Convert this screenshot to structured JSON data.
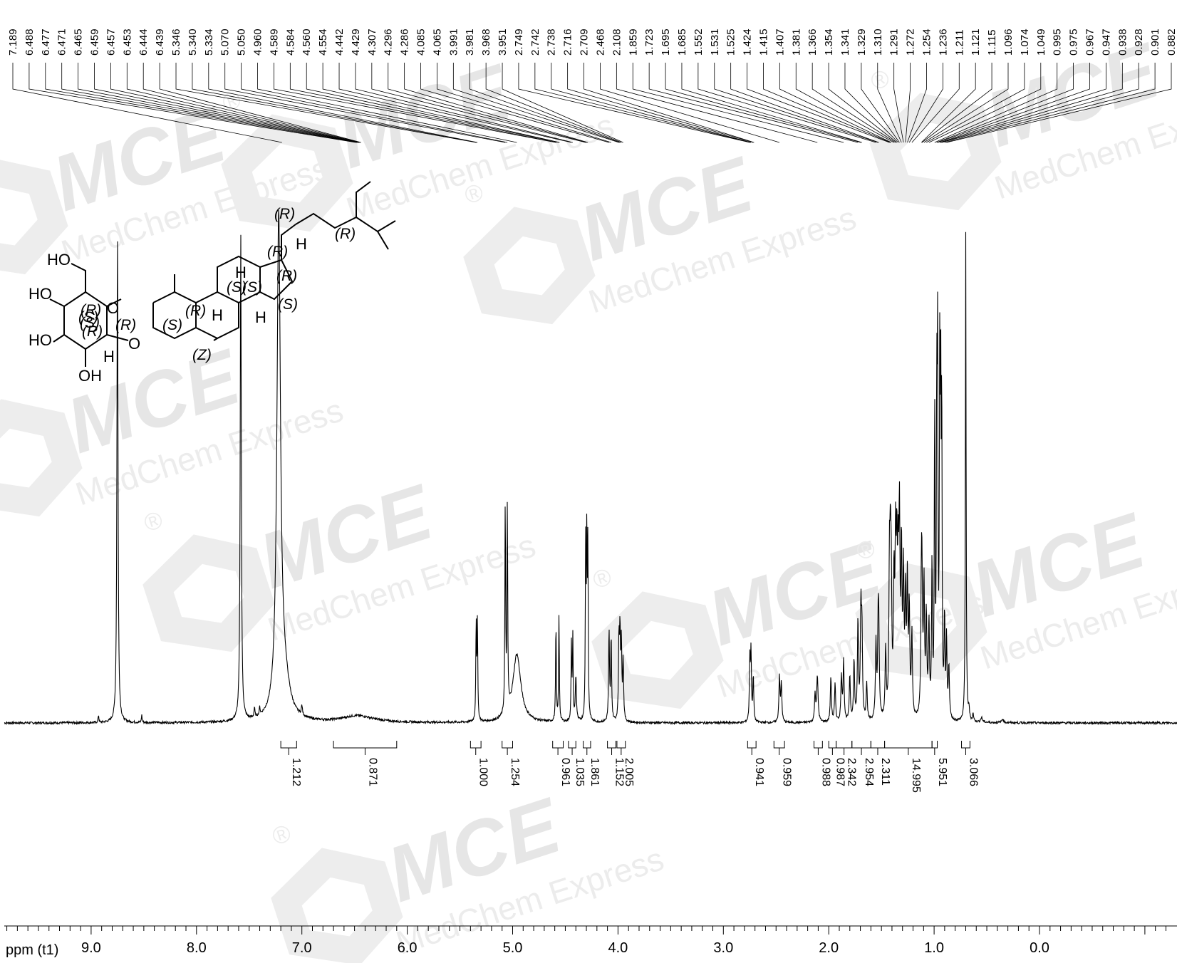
{
  "watermark": {
    "brand": "MCE",
    "sub": "MedChem Express",
    "mark": "®",
    "color": "#e6e6e6"
  },
  "molecule": {
    "atoms": [
      "HO",
      "HO",
      "HO",
      "OH",
      "O",
      "O",
      "H",
      "H",
      "H",
      "H",
      "H"
    ],
    "stereo": [
      "(R)",
      "(R)",
      "(R)",
      "(R)",
      "(S)",
      "(S)",
      "(S)",
      "(R)",
      "(S)",
      "(R)",
      "(S)",
      "(R)",
      "(S)",
      "(Z)",
      "(R)"
    ]
  },
  "chart_data": {
    "type": "line",
    "title": "",
    "xlabel": "ppm (t1)",
    "ylabel": "",
    "xlim": [
      10.0,
      -1.0
    ],
    "x_reversed": true,
    "x_ticks": [
      "9.0",
      "8.0",
      "7.0",
      "6.0",
      "5.0",
      "4.0",
      "3.0",
      "2.0",
      "1.0",
      "0.0"
    ],
    "x_tick_values": [
      9.0,
      8.0,
      7.0,
      6.0,
      5.0,
      4.0,
      3.0,
      2.0,
      1.0,
      0.0
    ],
    "grid": false,
    "line_color": "#000000",
    "peak_list": [
      "7.189",
      "6.488",
      "6.477",
      "6.471",
      "6.465",
      "6.459",
      "6.457",
      "6.453",
      "6.444",
      "6.439",
      "5.346",
      "5.340",
      "5.334",
      "5.070",
      "5.050",
      "4.960",
      "4.589",
      "4.584",
      "4.560",
      "4.554",
      "4.442",
      "4.429",
      "4.307",
      "4.296",
      "4.286",
      "4.085",
      "4.065",
      "3.991",
      "3.981",
      "3.968",
      "3.951",
      "2.749",
      "2.742",
      "2.738",
      "2.716",
      "2.709",
      "2.468",
      "2.108",
      "1.859",
      "1.723",
      "1.695",
      "1.685",
      "1.552",
      "1.531",
      "1.525",
      "1.424",
      "1.415",
      "1.407",
      "1.381",
      "1.366",
      "1.354",
      "1.341",
      "1.329",
      "1.310",
      "1.291",
      "1.272",
      "1.254",
      "1.236",
      "1.211",
      "1.121",
      "1.115",
      "1.096",
      "1.074",
      "1.049",
      "0.995",
      "0.975",
      "0.967",
      "0.947",
      "0.938",
      "0.928",
      "0.901",
      "0.882"
    ],
    "integrals": [
      {
        "label": "1.212",
        "from": 7.2,
        "to": 7.05
      },
      {
        "label": "0.871",
        "from": 6.7,
        "to": 6.1
      },
      {
        "label": "1.000",
        "from": 5.4,
        "to": 5.3
      },
      {
        "label": "1.254",
        "from": 5.1,
        "to": 5.0
      },
      {
        "label": "0.961",
        "from": 4.62,
        "to": 4.52
      },
      {
        "label": "1.035",
        "from": 4.47,
        "to": 4.4
      },
      {
        "label": "1.861",
        "from": 4.33,
        "to": 4.26
      },
      {
        "label": "1.152",
        "from": 4.1,
        "to": 4.02
      },
      {
        "label": "2.005",
        "from": 4.01,
        "to": 3.93
      },
      {
        "label": "0.941",
        "from": 2.77,
        "to": 2.69
      },
      {
        "label": "0.959",
        "from": 2.52,
        "to": 2.42
      },
      {
        "label": "0.988",
        "from": 2.14,
        "to": 2.06
      },
      {
        "label": "0.987",
        "from": 2.0,
        "to": 1.93
      },
      {
        "label": "2.342",
        "from": 1.93,
        "to": 1.78
      },
      {
        "label": "2.954",
        "from": 1.78,
        "to": 1.6
      },
      {
        "label": "2.311",
        "from": 1.6,
        "to": 1.47
      },
      {
        "label": "14.995",
        "from": 1.47,
        "to": 1.02
      },
      {
        "label": "5.951",
        "from": 1.02,
        "to": 0.97
      },
      {
        "label": "3.066",
        "from": 0.74,
        "to": 0.66
      }
    ],
    "peaks": [
      {
        "x": 8.93,
        "h": 0.02,
        "w": 0.004
      },
      {
        "x": 8.75,
        "h": 1.3,
        "w": 0.006
      },
      {
        "x": 8.52,
        "h": 0.02,
        "w": 0.004
      },
      {
        "x": 7.58,
        "h": 1.3,
        "w": 0.006
      },
      {
        "x": 7.45,
        "h": 0.025,
        "w": 0.005
      },
      {
        "x": 7.4,
        "h": 0.02,
        "w": 0.005
      },
      {
        "x": 7.22,
        "h": 1.3,
        "w": 0.02
      },
      {
        "x": 7.17,
        "h": 0.1,
        "w": 0.06
      },
      {
        "x": 7.0,
        "h": 0.025,
        "w": 0.006
      },
      {
        "x": 6.47,
        "h": 0.018,
        "w": 0.18
      },
      {
        "x": 5.346,
        "h": 0.26,
        "w": 0.004
      },
      {
        "x": 5.334,
        "h": 0.26,
        "w": 0.004
      },
      {
        "x": 5.07,
        "h": 0.56,
        "w": 0.004
      },
      {
        "x": 5.05,
        "h": 0.54,
        "w": 0.004
      },
      {
        "x": 4.96,
        "h": 0.18,
        "w": 0.045
      },
      {
        "x": 4.589,
        "h": 0.26,
        "w": 0.004
      },
      {
        "x": 4.56,
        "h": 0.28,
        "w": 0.004
      },
      {
        "x": 4.442,
        "h": 0.2,
        "w": 0.004
      },
      {
        "x": 4.429,
        "h": 0.22,
        "w": 0.004
      },
      {
        "x": 4.4,
        "h": 0.12,
        "w": 0.006
      },
      {
        "x": 4.307,
        "h": 0.45,
        "w": 0.004
      },
      {
        "x": 4.296,
        "h": 0.46,
        "w": 0.004
      },
      {
        "x": 4.286,
        "h": 0.44,
        "w": 0.004
      },
      {
        "x": 4.085,
        "h": 0.24,
        "w": 0.005
      },
      {
        "x": 4.065,
        "h": 0.22,
        "w": 0.005
      },
      {
        "x": 3.991,
        "h": 0.21,
        "w": 0.005
      },
      {
        "x": 3.981,
        "h": 0.22,
        "w": 0.005
      },
      {
        "x": 3.968,
        "h": 0.2,
        "w": 0.005
      },
      {
        "x": 3.951,
        "h": 0.16,
        "w": 0.005
      },
      {
        "x": 2.749,
        "h": 0.16,
        "w": 0.005
      },
      {
        "x": 2.738,
        "h": 0.18,
        "w": 0.005
      },
      {
        "x": 2.716,
        "h": 0.12,
        "w": 0.005
      },
      {
        "x": 2.468,
        "h": 0.12,
        "w": 0.006
      },
      {
        "x": 2.45,
        "h": 0.1,
        "w": 0.006
      },
      {
        "x": 2.108,
        "h": 0.12,
        "w": 0.008
      },
      {
        "x": 2.13,
        "h": 0.07,
        "w": 0.006
      },
      {
        "x": 1.98,
        "h": 0.12,
        "w": 0.006
      },
      {
        "x": 1.94,
        "h": 0.1,
        "w": 0.006
      },
      {
        "x": 1.88,
        "h": 0.12,
        "w": 0.006
      },
      {
        "x": 1.859,
        "h": 0.16,
        "w": 0.006
      },
      {
        "x": 1.8,
        "h": 0.12,
        "w": 0.006
      },
      {
        "x": 1.76,
        "h": 0.16,
        "w": 0.006
      },
      {
        "x": 1.723,
        "h": 0.26,
        "w": 0.006
      },
      {
        "x": 1.695,
        "h": 0.28,
        "w": 0.006
      },
      {
        "x": 1.685,
        "h": 0.22,
        "w": 0.006
      },
      {
        "x": 1.64,
        "h": 0.1,
        "w": 0.006
      },
      {
        "x": 1.552,
        "h": 0.2,
        "w": 0.006
      },
      {
        "x": 1.531,
        "h": 0.22,
        "w": 0.006
      },
      {
        "x": 1.525,
        "h": 0.18,
        "w": 0.006
      },
      {
        "x": 1.46,
        "h": 0.18,
        "w": 0.006
      },
      {
        "x": 1.424,
        "h": 0.36,
        "w": 0.006
      },
      {
        "x": 1.415,
        "h": 0.34,
        "w": 0.006
      },
      {
        "x": 1.407,
        "h": 0.3,
        "w": 0.006
      },
      {
        "x": 1.381,
        "h": 0.34,
        "w": 0.006
      },
      {
        "x": 1.366,
        "h": 0.4,
        "w": 0.006
      },
      {
        "x": 1.354,
        "h": 0.38,
        "w": 0.006
      },
      {
        "x": 1.341,
        "h": 0.34,
        "w": 0.006
      },
      {
        "x": 1.329,
        "h": 0.48,
        "w": 0.006
      },
      {
        "x": 1.31,
        "h": 0.42,
        "w": 0.006
      },
      {
        "x": 1.291,
        "h": 0.36,
        "w": 0.006
      },
      {
        "x": 1.272,
        "h": 0.3,
        "w": 0.006
      },
      {
        "x": 1.254,
        "h": 0.34,
        "w": 0.006
      },
      {
        "x": 1.236,
        "h": 0.28,
        "w": 0.006
      },
      {
        "x": 1.211,
        "h": 0.22,
        "w": 0.006
      },
      {
        "x": 1.121,
        "h": 0.3,
        "w": 0.006
      },
      {
        "x": 1.115,
        "h": 0.28,
        "w": 0.006
      },
      {
        "x": 1.096,
        "h": 0.34,
        "w": 0.006
      },
      {
        "x": 1.074,
        "h": 0.26,
        "w": 0.006
      },
      {
        "x": 1.049,
        "h": 0.24,
        "w": 0.006
      },
      {
        "x": 1.02,
        "h": 0.4,
        "w": 0.005
      },
      {
        "x": 0.995,
        "h": 0.82,
        "w": 0.004
      },
      {
        "x": 0.975,
        "h": 0.8,
        "w": 0.004
      },
      {
        "x": 0.967,
        "h": 0.9,
        "w": 0.004
      },
      {
        "x": 0.947,
        "h": 0.84,
        "w": 0.004
      },
      {
        "x": 0.938,
        "h": 0.86,
        "w": 0.004
      },
      {
        "x": 0.928,
        "h": 0.8,
        "w": 0.004
      },
      {
        "x": 0.901,
        "h": 0.26,
        "w": 0.005
      },
      {
        "x": 0.882,
        "h": 0.2,
        "w": 0.005
      },
      {
        "x": 0.86,
        "h": 0.14,
        "w": 0.006
      },
      {
        "x": 0.7,
        "h": 1.3,
        "w": 0.004
      },
      {
        "x": 0.67,
        "h": 0.03,
        "w": 0.006
      },
      {
        "x": 0.63,
        "h": 0.02,
        "w": 0.006
      },
      {
        "x": 0.55,
        "h": 0.012,
        "w": 0.01
      },
      {
        "x": 0.35,
        "h": 0.01,
        "w": 0.01
      }
    ]
  }
}
